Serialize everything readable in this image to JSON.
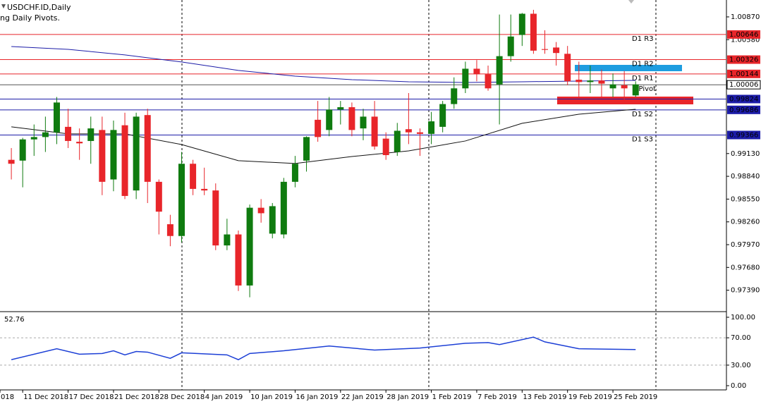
{
  "header": {
    "symbol": "USDCHF.ID,Daily",
    "indicator": "ng Daily Pivots."
  },
  "chart_data": [
    {
      "type": "candlestick",
      "xlim": [
        -1,
        63
      ],
      "ylim": [
        0.97135,
        1.01085
      ],
      "up_color": "#0f7b0f",
      "down_color": "#e8252a",
      "yticks": [
        {
          "value": 1.0087,
          "label": "1.00870"
        },
        {
          "value": 1.0058,
          "label": "1.00580"
        },
        {
          "value": 0.9913,
          "label": "0.99130"
        },
        {
          "value": 0.9884,
          "label": "0.98840"
        },
        {
          "value": 0.9855,
          "label": "0.98550"
        },
        {
          "value": 0.9826,
          "label": "0.98260"
        },
        {
          "value": 0.9797,
          "label": "0.97970"
        },
        {
          "value": 0.9768,
          "label": "0.97680"
        },
        {
          "value": 0.9739,
          "label": "0.97390"
        }
      ],
      "xticks": [
        {
          "value": -1,
          "label": "018"
        },
        {
          "value": 1,
          "label": "11 Dec 2018"
        },
        {
          "value": 5,
          "label": "17 Dec 2018"
        },
        {
          "value": 9,
          "label": "21 Dec 2018"
        },
        {
          "value": 13,
          "label": "28 Dec 2018"
        },
        {
          "value": 17,
          "label": "4 Jan 2019"
        },
        {
          "value": 21,
          "label": "10 Jan 2019"
        },
        {
          "value": 25,
          "label": "16 Jan 2019"
        },
        {
          "value": 29,
          "label": "22 Jan 2019"
        },
        {
          "value": 33,
          "label": "28 Jan 2019"
        },
        {
          "value": 37,
          "label": "1 Feb 2019"
        },
        {
          "value": 41,
          "label": "7 Feb 2019"
        },
        {
          "value": 45,
          "label": "13 Feb 2019"
        },
        {
          "value": 49,
          "label": "19 Feb 2019"
        },
        {
          "value": 53,
          "label": "25 Feb 2019"
        }
      ],
      "open": [
        0.9905,
        0.9904,
        0.9931,
        0.9934,
        0.994,
        0.9947,
        0.9928,
        0.9929,
        0.9943,
        0.988,
        0.9949,
        0.9866,
        0.9962,
        0.9877,
        0.9823,
        0.9808,
        0.99,
        0.9868,
        0.9866,
        0.9796,
        0.981,
        0.9745,
        0.9844,
        0.9811,
        0.981,
        0.9877,
        0.9904,
        0.9956,
        0.9943,
        0.9969,
        0.9972,
        0.9945,
        0.996,
        0.9932,
        0.9915,
        0.9944,
        0.994,
        0.9938,
        0.9947,
        0.9976,
        0.9996,
        1.0021,
        1.0014,
        1.0001,
        1.0037,
        1.0064,
        1.0091,
        1.0046,
        1.0048,
        1.004,
        1.0007,
        1.0004,
        1.0006,
        0.9996,
        1.0,
        0.9987
      ],
      "high": [
        0.992,
        0.9933,
        0.995,
        0.996,
        0.9985,
        0.997,
        0.9945,
        0.996,
        0.996,
        0.9955,
        0.9965,
        0.9965,
        0.997,
        0.988,
        0.9835,
        0.9915,
        0.9905,
        0.9895,
        0.9875,
        0.983,
        0.9815,
        0.9848,
        0.9855,
        0.985,
        0.9882,
        0.991,
        0.9935,
        0.998,
        0.9985,
        0.998,
        0.9978,
        0.997,
        0.998,
        0.994,
        0.9952,
        0.999,
        0.9945,
        0.9966,
        0.998,
        1.001,
        1.003,
        1.0032,
        1.0025,
        1.009,
        1.009,
        1.0092,
        1.0096,
        1.007,
        1.0055,
        1.005,
        1.003,
        1.0025,
        1.002,
        1.0015,
        1.0018,
        1.0005
      ],
      "low": [
        0.988,
        0.987,
        0.991,
        0.9915,
        0.9925,
        0.992,
        0.9905,
        0.99,
        0.986,
        0.9865,
        0.9855,
        0.9855,
        0.985,
        0.981,
        0.9795,
        0.98,
        0.986,
        0.986,
        0.979,
        0.979,
        0.9738,
        0.973,
        0.9825,
        0.9805,
        0.9805,
        0.987,
        0.989,
        0.9928,
        0.9935,
        0.995,
        0.9935,
        0.993,
        0.9918,
        0.9905,
        0.991,
        0.9925,
        0.991,
        0.9925,
        0.994,
        0.997,
        0.999,
        1.0005,
        0.9993,
        0.995,
        1.003,
        1.005,
        1.004,
        1.004,
        1.0025,
        1.0,
        0.9985,
        0.999,
        0.9985,
        0.9985,
        0.998,
        0.9985
      ],
      "close": [
        0.99,
        0.9931,
        0.9934,
        0.994,
        0.9978,
        0.9929,
        0.9926,
        0.9945,
        0.9877,
        0.9943,
        0.9859,
        0.996,
        0.9877,
        0.9839,
        0.9808,
        0.99,
        0.9868,
        0.9866,
        0.9796,
        0.981,
        0.9745,
        0.9844,
        0.9837,
        0.9846,
        0.9877,
        0.99,
        0.9934,
        0.9934,
        0.9969,
        0.9972,
        0.9943,
        0.996,
        0.9922,
        0.9911,
        0.9942,
        0.994,
        0.9938,
        0.9954,
        0.9976,
        0.9996,
        1.0021,
        1.0014,
        0.9996,
        1.0037,
        1.0062,
        1.0091,
        1.0044,
        1.0045,
        1.0041,
        1.0005,
        1.0004,
        1.0006,
        1.0002,
        1.0001,
        0.9996,
        1.0001
      ],
      "lines": [
        {
          "color": "#1c1ca8",
          "x": [
            0,
            5,
            10,
            15,
            20,
            25,
            30,
            35,
            40,
            45,
            50,
            55
          ],
          "values": [
            1.00493,
            1.00457,
            1.00386,
            1.00296,
            1.00188,
            1.00116,
            1.00071,
            1.00044,
            1.00035,
            1.00044,
            1.00053,
            1.00062
          ]
        },
        {
          "color": "#111111",
          "x": [
            0,
            5,
            10,
            15,
            20,
            25,
            30,
            35,
            40,
            45,
            50,
            55
          ],
          "values": [
            0.9947,
            0.9938,
            0.9938,
            0.99245,
            0.99039,
            0.99003,
            0.99092,
            0.99164,
            0.9929,
            0.99515,
            0.99631,
            0.99694
          ]
        }
      ],
      "pivots": [
        {
          "name": "D1 R3",
          "value": 1.00646,
          "color": "#e8252a"
        },
        {
          "name": "D1 R2",
          "value": 1.00326,
          "color": "#e8252a"
        },
        {
          "name": "D1 R1",
          "value": 1.00144,
          "color": "#e8252a"
        },
        {
          "name": "1 Pivot",
          "value": 1.00006,
          "color": "#555555"
        },
        {
          "name": null,
          "value": 0.99824,
          "color": "#1c1ca8"
        },
        {
          "name": "D1 S2",
          "value": 0.99686,
          "color": "#1c1ca8"
        },
        {
          "name": "D1 S3",
          "value": 0.99366,
          "color": "#1c1ca8"
        }
      ]
    },
    {
      "type": "line",
      "xlim": [
        -1,
        63
      ],
      "ylim": [
        -6.2,
        107.2
      ],
      "yticks": [
        {
          "value": 100,
          "label": "100.00"
        },
        {
          "value": 70,
          "label": "70.00"
        },
        {
          "value": 30,
          "label": "30.00"
        },
        {
          "value": 0,
          "label": "0.00"
        }
      ],
      "levels": [
        70,
        30
      ],
      "color": "#1c3fd6",
      "x": [
        0,
        4,
        6,
        8,
        9,
        10,
        11,
        12,
        14,
        15,
        19,
        20,
        21,
        24,
        28,
        32,
        36,
        40,
        42,
        43,
        46,
        47,
        50,
        55
      ],
      "values": [
        38,
        54,
        46,
        47,
        51,
        45,
        50,
        49,
        40,
        48,
        45,
        38,
        47,
        51,
        58,
        52,
        55,
        62,
        63,
        60,
        71,
        64,
        54,
        52.76
      ]
    }
  ]
}
